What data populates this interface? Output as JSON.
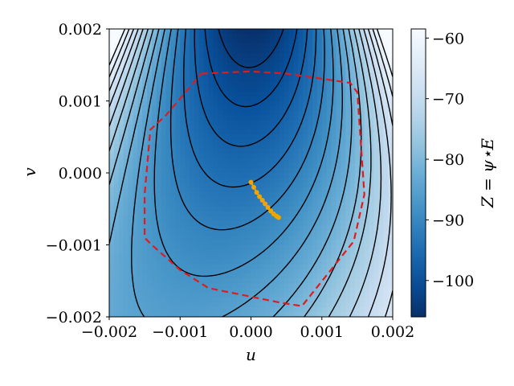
{
  "chart_data": {
    "type": "contour",
    "title": "",
    "xlabel": "u",
    "ylabel": "v",
    "xlim": [
      -0.002,
      0.002
    ],
    "ylim": [
      -0.002,
      0.002
    ],
    "x_ticks": [
      -0.002,
      -0.001,
      0.0,
      0.001,
      0.002
    ],
    "x_tick_labels": [
      "−0.002",
      "−0.001",
      "0.000",
      "0.001",
      "0.002"
    ],
    "y_ticks": [
      -0.002,
      -0.001,
      0.0,
      0.001,
      0.002
    ],
    "y_tick_labels": [
      "−0.002",
      "−0.001",
      "0.000",
      "0.001",
      "0.002"
    ],
    "colorbar": {
      "label": "Z = ψ⋆E",
      "colormap": "Blues_r",
      "range": [
        -106,
        -58.5
      ],
      "ticks": [
        -100,
        -90,
        -80,
        -70,
        -60
      ],
      "tick_labels": [
        "−100",
        "−90",
        "−80",
        "−70",
        "−60"
      ]
    },
    "surface": {
      "min_location": [
        0.0,
        0.002
      ],
      "min_value": -106,
      "max_value": -58.5,
      "contour_levels": [
        -103,
        -100,
        -97,
        -94,
        -91,
        -88,
        -85,
        -82,
        -79,
        -76,
        -73,
        -70,
        -67,
        -64,
        -61
      ]
    },
    "boundary": {
      "style": "dashed",
      "color": "#e31a1c",
      "points": [
        [
          -0.0007,
          0.00138
        ],
        [
          0.0,
          0.00141
        ],
        [
          0.0005,
          0.00138
        ],
        [
          0.0014,
          0.00125
        ],
        [
          0.0015,
          0.00112
        ],
        [
          0.0016,
          -0.0003
        ],
        [
          0.00145,
          -0.00095
        ],
        [
          0.00072,
          -0.00185
        ],
        [
          0.0004,
          -0.0018
        ],
        [
          -0.0006,
          -0.0016
        ],
        [
          -0.001,
          -0.00135
        ],
        [
          -0.0014,
          -0.001
        ],
        [
          -0.0015,
          -0.0009
        ],
        [
          -0.0015,
          -0.0003
        ],
        [
          -0.00142,
          0.0006
        ],
        [
          -0.0012,
          0.0008
        ],
        [
          -0.0007,
          0.00138
        ]
      ]
    },
    "trajectory": {
      "color": "#f4a400",
      "points": [
        [
          0.0,
          -0.00013
        ],
        [
          4e-05,
          -0.0002
        ],
        [
          8e-05,
          -0.00027
        ],
        [
          0.00012,
          -0.00033
        ],
        [
          0.00016,
          -0.00038
        ],
        [
          0.0002,
          -0.00043
        ],
        [
          0.00024,
          -0.00048
        ],
        [
          0.00028,
          -0.00053
        ],
        [
          0.00032,
          -0.00057
        ],
        [
          0.00036,
          -0.0006
        ],
        [
          0.00039,
          -0.00062
        ]
      ]
    }
  }
}
